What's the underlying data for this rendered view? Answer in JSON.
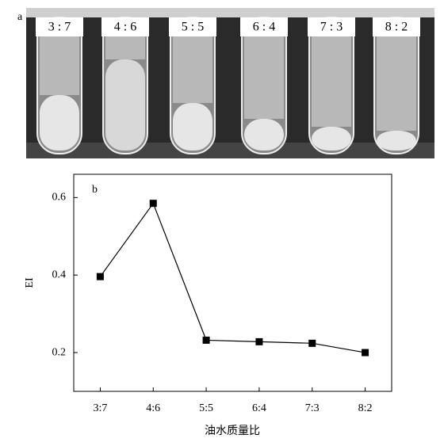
{
  "photo": {
    "label": "a",
    "tube_labels": [
      "3 : 7",
      "4 : 6",
      "5 : 5",
      "6 : 4",
      "7 : 3",
      "8 : 2"
    ]
  },
  "chart_data": {
    "type": "line",
    "panel_label": "b",
    "x_label": "油水质量比",
    "y_label": "EI",
    "categories": [
      "3:7",
      "4:6",
      "5:5",
      "6:4",
      "7:3",
      "8:2"
    ],
    "values": [
      0.396,
      0.585,
      0.232,
      0.228,
      0.224,
      0.2
    ],
    "color": "#000000",
    "marker": "square",
    "ylim": [
      0.1,
      0.66
    ],
    "yticks": [
      0.2,
      0.4,
      0.6
    ],
    "grid": false
  }
}
